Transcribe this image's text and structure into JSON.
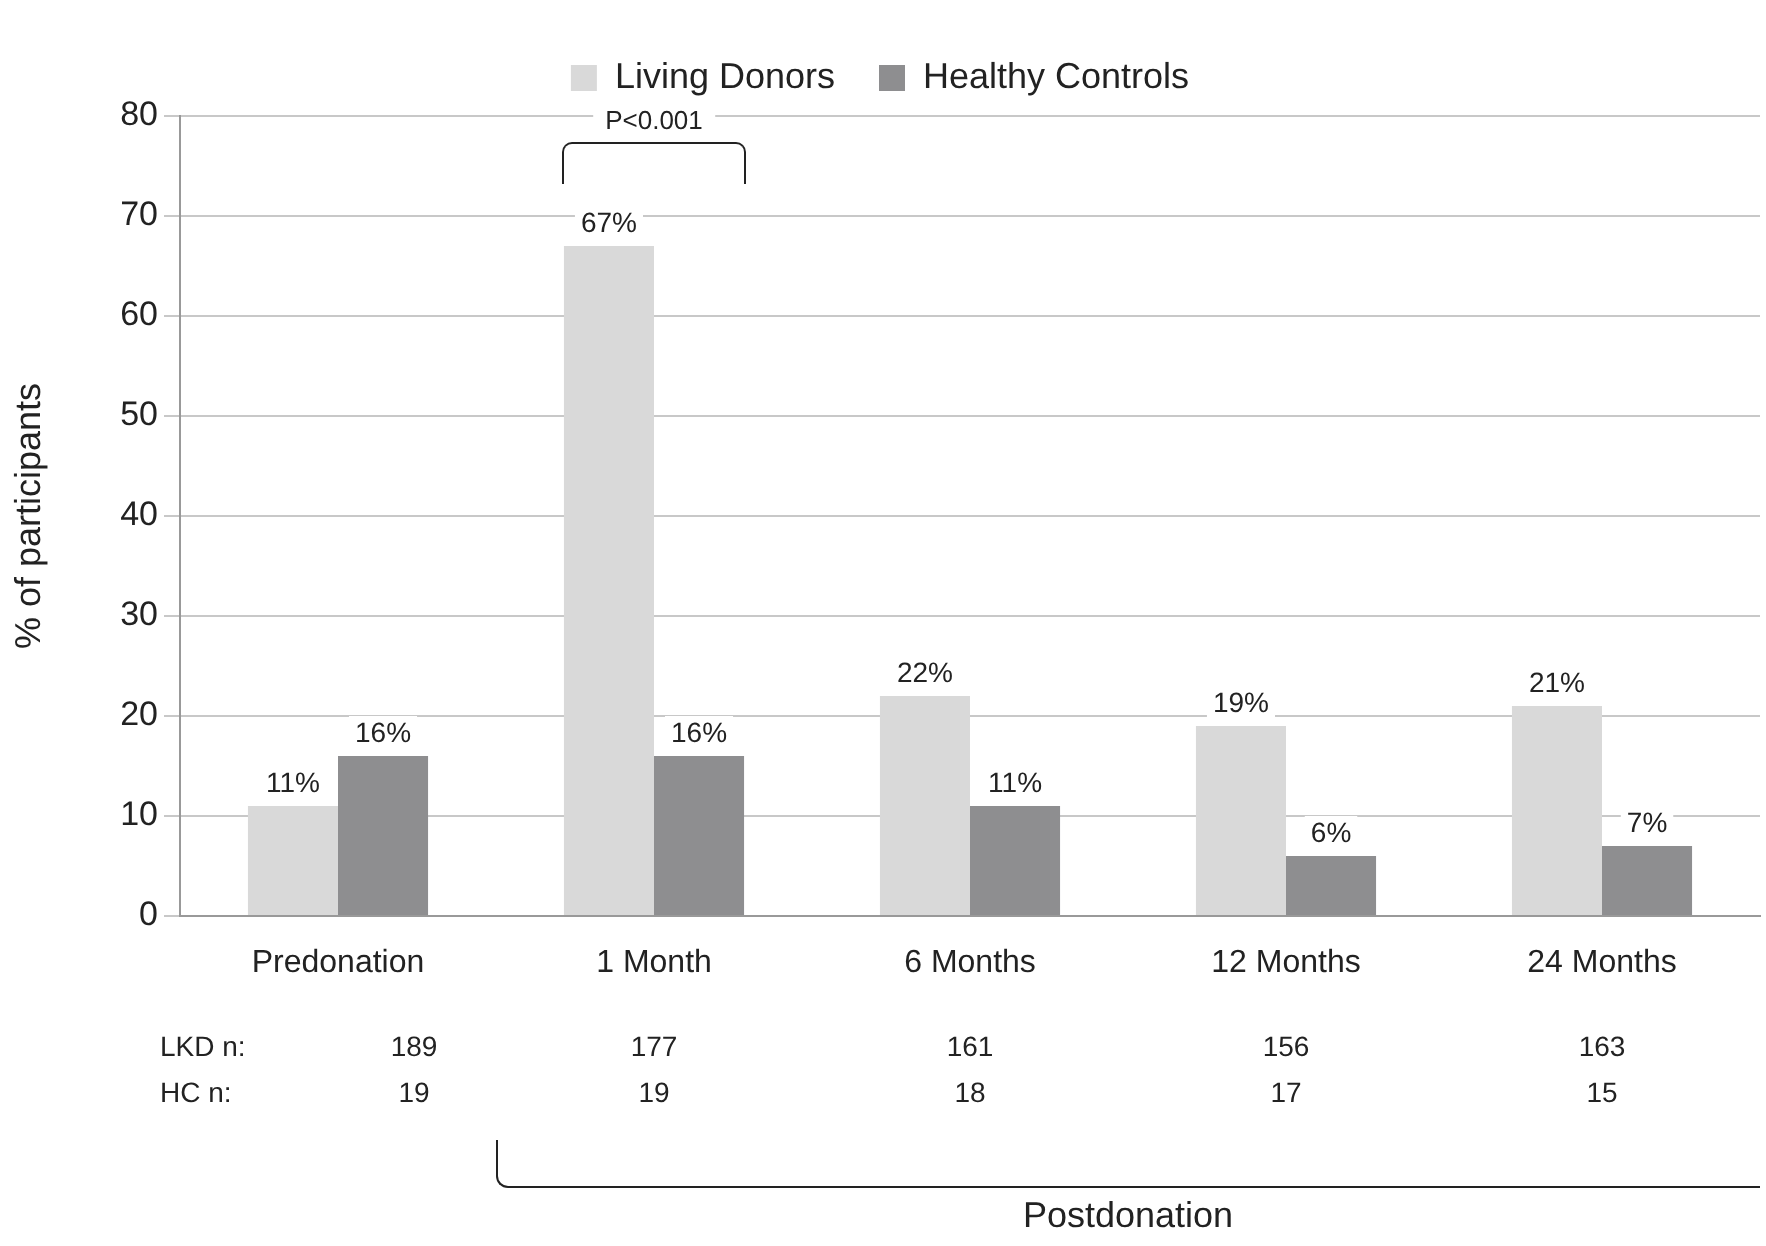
{
  "chart_data": {
    "type": "bar",
    "ylabel": "% of participants",
    "categories": [
      "Predonation",
      "1 Month",
      "6 Months",
      "12 Months",
      "24 Months"
    ],
    "series": [
      {
        "name": "Living Donors",
        "color": "#d9d9d9",
        "values": [
          11,
          67,
          22,
          19,
          21
        ],
        "value_labels": [
          "11%",
          "67%",
          "22%",
          "19%",
          "21%"
        ]
      },
      {
        "name": "Healthy Controls",
        "color": "#8e8e90",
        "values": [
          16,
          16,
          11,
          6,
          7
        ],
        "value_labels": [
          "16%",
          "16%",
          "11%",
          "6%",
          "7%"
        ]
      }
    ],
    "ylim": [
      0,
      80
    ],
    "yticks": [
      0,
      10,
      20,
      30,
      40,
      50,
      60,
      70,
      80
    ],
    "grid": "y",
    "legend": "top",
    "annotations": [
      "P<0.001",
      "LKD n:",
      "189",
      "177",
      "161",
      "156",
      "163",
      "HC n:",
      "19",
      "19",
      "18",
      "17",
      "15",
      "Postdonation"
    ]
  }
}
